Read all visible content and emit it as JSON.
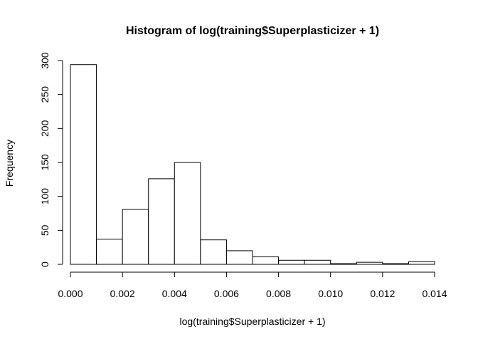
{
  "chart_data": {
    "type": "bar",
    "title": "Histogram of log(training$Superplasticizer + 1)",
    "xlabel": "log(training$Superplasticizer + 1)",
    "ylabel": "Frequency",
    "bin_edges": [
      0.0,
      0.001,
      0.002,
      0.003,
      0.004,
      0.005,
      0.006,
      0.007,
      0.008,
      0.009,
      0.01,
      0.011,
      0.012,
      0.013,
      0.014
    ],
    "values": [
      294,
      37,
      81,
      126,
      150,
      36,
      20,
      11,
      6,
      6,
      1,
      3,
      1,
      4
    ],
    "xlim": [
      0.0,
      0.014
    ],
    "ylim": [
      0,
      300
    ],
    "x_ticks": [
      "0.000",
      "0.002",
      "0.004",
      "0.006",
      "0.008",
      "0.010",
      "0.012",
      "0.014"
    ],
    "y_ticks": [
      "0",
      "50",
      "100",
      "150",
      "200",
      "250",
      "300"
    ],
    "grid": false,
    "legend": "none"
  }
}
